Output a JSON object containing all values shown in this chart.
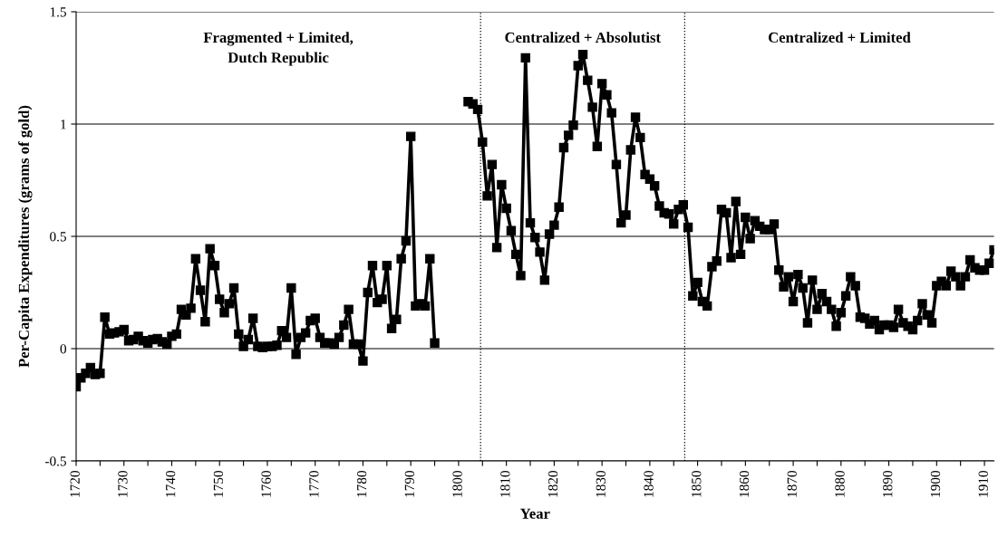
{
  "chart_data": {
    "type": "line",
    "xlabel": "Year",
    "ylabel": "Per-Capita Expenditures (grams of gold)",
    "x": [
      1720,
      1721,
      1722,
      1723,
      1724,
      1725,
      1726,
      1727,
      1728,
      1729,
      1730,
      1731,
      1732,
      1733,
      1734,
      1735,
      1736,
      1737,
      1738,
      1739,
      1740,
      1741,
      1742,
      1743,
      1744,
      1745,
      1746,
      1747,
      1748,
      1749,
      1750,
      1751,
      1752,
      1753,
      1754,
      1755,
      1756,
      1757,
      1758,
      1759,
      1760,
      1761,
      1762,
      1763,
      1764,
      1765,
      1766,
      1767,
      1768,
      1769,
      1770,
      1771,
      1772,
      1773,
      1774,
      1775,
      1776,
      1777,
      1778,
      1779,
      1780,
      1781,
      1782,
      1783,
      1784,
      1785,
      1786,
      1787,
      1788,
      1789,
      1790,
      1791,
      1792,
      1793,
      1794,
      1795,
      1796,
      1797,
      1798,
      1799,
      1800,
      1801,
      1802,
      1803,
      1804,
      1805,
      1806,
      1807,
      1808,
      1809,
      1810,
      1811,
      1812,
      1813,
      1814,
      1815,
      1816,
      1817,
      1818,
      1819,
      1820,
      1821,
      1822,
      1823,
      1824,
      1825,
      1826,
      1827,
      1828,
      1829,
      1830,
      1831,
      1832,
      1833,
      1834,
      1835,
      1836,
      1837,
      1838,
      1839,
      1840,
      1841,
      1842,
      1843,
      1844,
      1845,
      1846,
      1847,
      1848,
      1849,
      1850,
      1851,
      1852,
      1853,
      1854,
      1855,
      1856,
      1857,
      1858,
      1859,
      1860,
      1861,
      1862,
      1863,
      1864,
      1865,
      1866,
      1867,
      1868,
      1869,
      1870,
      1871,
      1872,
      1873,
      1874,
      1875,
      1876,
      1877,
      1878,
      1879,
      1880,
      1881,
      1882,
      1883,
      1884,
      1885,
      1886,
      1887,
      1888,
      1889,
      1890,
      1891,
      1892,
      1893,
      1894,
      1895,
      1896,
      1897,
      1898,
      1899,
      1900,
      1901,
      1902,
      1903,
      1904,
      1905,
      1906,
      1907,
      1908,
      1909,
      1910,
      1911,
      1912
    ],
    "series": [
      {
        "color": "#000000",
        "values": [
          -0.17,
          -0.13,
          -0.11,
          -0.085,
          -0.115,
          -0.11,
          0.14,
          0.065,
          0.07,
          0.075,
          0.085,
          0.035,
          0.04,
          0.055,
          0.035,
          0.025,
          0.04,
          0.045,
          0.03,
          0.02,
          0.055,
          0.065,
          0.175,
          0.15,
          0.18,
          0.4,
          0.26,
          0.12,
          0.445,
          0.37,
          0.22,
          0.16,
          0.2,
          0.27,
          0.065,
          0.01,
          0.04,
          0.135,
          0.01,
          0.005,
          0.01,
          0.01,
          0.015,
          0.08,
          0.05,
          0.27,
          -0.025,
          0.05,
          0.07,
          0.125,
          0.135,
          0.05,
          0.025,
          0.025,
          0.02,
          0.05,
          0.105,
          0.175,
          0.02,
          0.02,
          -0.055,
          0.25,
          0.37,
          0.205,
          0.22,
          0.37,
          0.09,
          0.13,
          0.4,
          0.48,
          0.945,
          0.19,
          0.2,
          0.19,
          0.4,
          0.025,
          null,
          null,
          null,
          null,
          null,
          null,
          1.1,
          1.09,
          1.065,
          0.92,
          0.68,
          0.82,
          0.45,
          0.73,
          0.625,
          0.525,
          0.42,
          0.325,
          1.295,
          0.56,
          0.495,
          0.43,
          0.305,
          0.51,
          0.55,
          0.63,
          0.895,
          0.95,
          0.995,
          1.26,
          1.31,
          1.195,
          1.075,
          0.9,
          1.18,
          1.13,
          1.05,
          0.82,
          0.56,
          0.595,
          0.885,
          1.03,
          0.94,
          0.775,
          0.755,
          0.725,
          0.635,
          0.605,
          0.6,
          0.555,
          0.62,
          0.64,
          0.54,
          0.235,
          0.295,
          0.21,
          0.19,
          0.365,
          0.39,
          0.62,
          0.605,
          0.405,
          0.655,
          0.42,
          0.585,
          0.49,
          0.57,
          0.545,
          0.53,
          0.53,
          0.555,
          0.35,
          0.275,
          0.32,
          0.21,
          0.33,
          0.27,
          0.115,
          0.305,
          0.175,
          0.245,
          0.21,
          0.175,
          0.1,
          0.16,
          0.235,
          0.32,
          0.28,
          0.14,
          0.135,
          0.11,
          0.125,
          0.085,
          0.105,
          0.105,
          0.095,
          0.175,
          0.115,
          0.1,
          0.085,
          0.125,
          0.2,
          0.15,
          0.115,
          0.28,
          0.3,
          0.28,
          0.345,
          0.32,
          0.28,
          0.32,
          0.395,
          0.36,
          0.35,
          0.35,
          0.38,
          0.44
        ]
      }
    ],
    "xlim": [
      1720,
      1912
    ],
    "ylim": [
      -0.5,
      1.5
    ],
    "xticks": [
      1720,
      {
        "value": 1725,
        "label": null
      },
      1730,
      {
        "value": 1735,
        "label": null
      },
      1740,
      {
        "value": 1745,
        "label": null
      },
      1750,
      {
        "value": 1755,
        "label": null
      },
      1760,
      {
        "value": 1765,
        "label": null
      },
      1770,
      {
        "value": 1775,
        "label": null
      },
      1780,
      {
        "value": 1785,
        "label": null
      },
      1790,
      {
        "value": 1795,
        "label": null
      },
      1800,
      {
        "value": 1805,
        "label": null
      },
      1810,
      {
        "value": 1815,
        "label": null
      },
      1820,
      {
        "value": 1825,
        "label": null
      },
      1830,
      {
        "value": 1835,
        "label": null
      },
      1840,
      {
        "value": 1845,
        "label": null
      },
      1850,
      {
        "value": 1855,
        "label": null
      },
      1860,
      {
        "value": 1865,
        "label": null
      },
      1870,
      {
        "value": 1875,
        "label": null
      },
      1880,
      {
        "value": 1885,
        "label": null
      },
      1890,
      {
        "value": 1895,
        "label": null
      },
      1900,
      {
        "value": 1905,
        "label": null
      },
      1910
    ],
    "yticks": [
      {
        "value": -0.5,
        "label": "-0.5"
      },
      0,
      0.5,
      1,
      1.5
    ],
    "grid": "y",
    "marker": "square",
    "line_style": "solid",
    "ref_lines": [
      {
        "axis": "x",
        "value": 1804.6,
        "color": "#000000",
        "line_style": "dotted"
      },
      {
        "axis": "x",
        "value": 1847.3,
        "color": "#000000",
        "line_style": "dotted"
      }
    ],
    "annotations": [
      "Fragmented + Limited,\nDutch Republic",
      "Centralized + Absolutist",
      "Centralized + Limited"
    ]
  }
}
